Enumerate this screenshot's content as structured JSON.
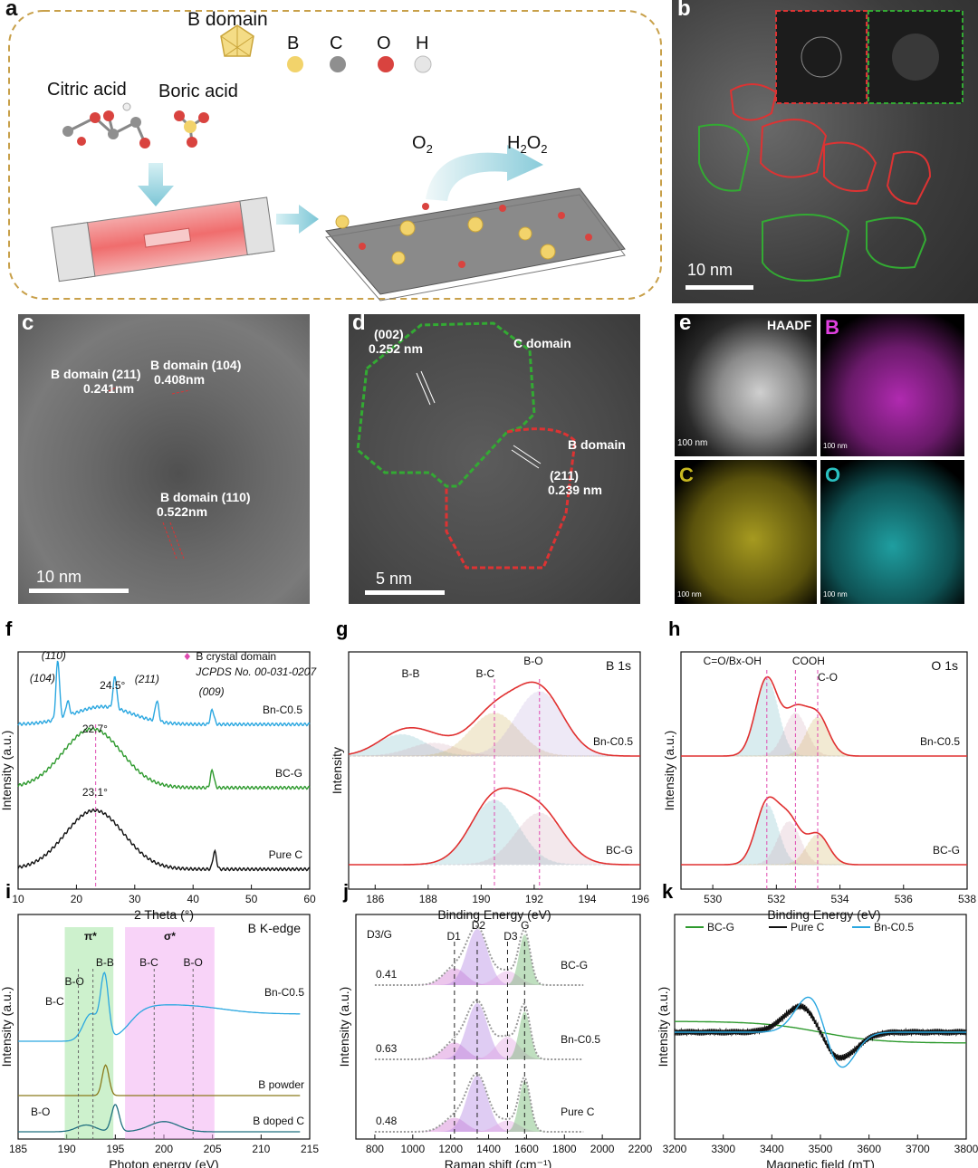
{
  "panel_a": {
    "label": "a",
    "b_domain": "B domain",
    "legend": [
      {
        "letter": "B",
        "color": "#f2d36b"
      },
      {
        "letter": "C",
        "color": "#9a9a9a"
      },
      {
        "letter": "O",
        "color": "#d9433f"
      },
      {
        "letter": "H",
        "color": "#e4e4e4"
      }
    ],
    "citric": "Citric acid",
    "boric": "Boric acid",
    "o2": "O",
    "o2_sub": "2",
    "h2o2_1": "H",
    "h2o2_2": "O",
    "h2o2_sub": "2"
  },
  "panel_b": {
    "label": "b",
    "scale": "10 nm"
  },
  "panel_c": {
    "label": "c",
    "ann1": "B domain (211)",
    "ann1b": "0.241nm",
    "ann2": "B domain (104)",
    "ann2b": "0.408nm",
    "ann3": "B domain (110)",
    "ann3b": "0.522nm",
    "scale": "10 nm"
  },
  "panel_d": {
    "label": "d",
    "ann1": "(002)",
    "ann1b": "0.252 nm",
    "c_domain": "C domain",
    "b_domain": "B domain",
    "ann2": "(211)",
    "ann2b": "0.239 nm",
    "scale": "5 nm"
  },
  "panel_e": {
    "label": "e",
    "haadf": "HAADF",
    "b": "B",
    "c": "C",
    "o": "O",
    "scale": "100 nm"
  },
  "chart_data": [
    {
      "id": "f",
      "type": "line",
      "title": "",
      "xlabel": "2 Theta (°)",
      "ylabel": "Intensity (a.u.)",
      "xlim": [
        10,
        60
      ],
      "xticks": [
        10,
        20,
        30,
        40,
        50,
        60
      ],
      "series": [
        {
          "name": "Bn-C0.5",
          "color": "#2aa7e0",
          "peaks": [
            [
              16.8,
              1.0
            ],
            [
              18.5,
              0.25
            ],
            [
              26.6,
              0.55
            ],
            [
              33.8,
              0.35
            ],
            [
              43.3,
              0.25
            ]
          ],
          "broad": [
            24.5,
            0.3
          ]
        },
        {
          "name": "BC-G",
          "color": "#2e9a2e",
          "broad": [
            22.7,
            1.0
          ],
          "peaks": [
            [
              43.3,
              0.3
            ]
          ]
        },
        {
          "name": "Pure C",
          "color": "#111111",
          "broad": [
            23.1,
            1.0
          ],
          "peaks": [
            [
              43.7,
              0.3
            ]
          ]
        }
      ],
      "annotations": [
        "(110)",
        "(104)",
        "24.5°",
        "(211)",
        "(009)",
        "22.7°",
        "23.1°"
      ],
      "legend": "B crystal domain",
      "legend2": "JCPDS No. 00-031-0207"
    },
    {
      "id": "g",
      "type": "line",
      "title": "B 1s",
      "xlabel": "Binding Energy (eV)",
      "ylabel": "Intensity",
      "xlim": [
        185,
        196
      ],
      "xticks": [
        186,
        188,
        190,
        192,
        194,
        196
      ],
      "series": [
        {
          "name": "Bn-C0.5",
          "components": [
            [
              187.0,
              0.25
            ],
            [
              188.2,
              0.15
            ],
            [
              190.5,
              0.5
            ],
            [
              192.2,
              0.75
            ]
          ]
        },
        {
          "name": "BC-G",
          "components": [
            [
              190.5,
              0.75
            ],
            [
              192.2,
              0.6
            ]
          ]
        }
      ],
      "annotations": [
        "B-B",
        "B-C",
        "B-O"
      ]
    },
    {
      "id": "h",
      "type": "line",
      "title": "O 1s",
      "xlabel": "Binding Energy (eV)",
      "ylabel": "Intensity (a.u.)",
      "xlim": [
        529,
        538
      ],
      "xticks": [
        530,
        532,
        534,
        536,
        538
      ],
      "series": [
        {
          "name": "Bn-C0.5",
          "components": [
            [
              531.7,
              0.9
            ],
            [
              532.6,
              0.5
            ],
            [
              533.3,
              0.45
            ]
          ]
        },
        {
          "name": "BC-G",
          "components": [
            [
              531.7,
              0.7
            ],
            [
              532.4,
              0.5
            ],
            [
              533.3,
              0.35
            ]
          ]
        }
      ],
      "annotations": [
        "C=O/Bx-OH",
        "COOH",
        "C-O"
      ]
    },
    {
      "id": "i",
      "type": "line",
      "title": "B K-edge",
      "xlabel": "Photon energy (eV)",
      "ylabel": "Intensity (a.u.)",
      "xlim": [
        185,
        215
      ],
      "xticks": [
        185,
        190,
        195,
        200,
        205,
        210,
        215
      ],
      "series": [
        {
          "name": "Bn-C0.5",
          "color": "#2aa7e0"
        },
        {
          "name": "B powder",
          "color": "#8a7a1a"
        },
        {
          "name": "B doped C",
          "color": "#1f6f7f"
        }
      ],
      "annotations": [
        "π*",
        "σ*",
        "B-C",
        "B-O",
        "B-B",
        "B-C",
        "B-O",
        "B-O"
      ]
    },
    {
      "id": "j",
      "type": "line",
      "title": "",
      "xlabel": "Raman shift (cm⁻¹)",
      "ylabel": "Intensity (a.u.)",
      "xlim": [
        700,
        2200
      ],
      "xticks": [
        800,
        1000,
        1200,
        1400,
        1600,
        1800,
        2000,
        2200
      ],
      "series": [
        {
          "name": "BC-G",
          "ratio": "0.41"
        },
        {
          "name": "Bn-C0.5",
          "ratio": "0.63"
        },
        {
          "name": "Pure C",
          "ratio": "0.48"
        }
      ],
      "annotations": [
        "D3/G",
        "D1",
        "D2",
        "D3",
        "G"
      ]
    },
    {
      "id": "k",
      "type": "line",
      "title": "",
      "xlabel": "Magnetic field (mT)",
      "ylabel": "Intensity (a.u.)",
      "xlim": [
        3200,
        3800
      ],
      "xticks": [
        3200,
        3300,
        3400,
        3500,
        3600,
        3700,
        3800
      ],
      "series": [
        {
          "name": "BC-G",
          "color": "#2e9a2e"
        },
        {
          "name": "Pure C",
          "color": "#111111"
        },
        {
          "name": "Bn-C0.5",
          "color": "#2aa7e0"
        }
      ]
    }
  ]
}
